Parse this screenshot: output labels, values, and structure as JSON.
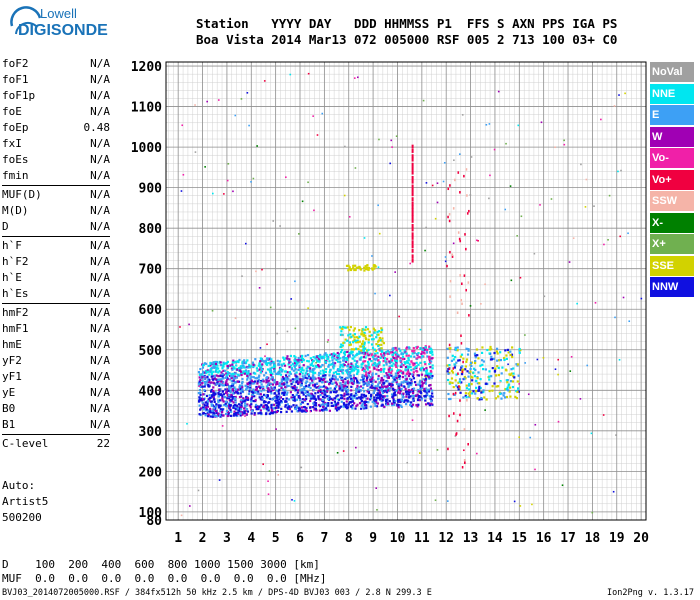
{
  "logo": {
    "line1": "Lowell",
    "line2": "DIGISONDE"
  },
  "header": {
    "line1": "Station   YYYY DAY   DDD HHMMSS P1  FFS S AXN PPS IGA PS",
    "line2": "Boa Vista 2014 Mar13 072 005000 RSF 005 2 713 100 03+ C0"
  },
  "params": [
    [
      {
        "k": "foF2",
        "v": "N/A"
      },
      {
        "k": "foF1",
        "v": "N/A"
      },
      {
        "k": "foF1p",
        "v": "N/A"
      },
      {
        "k": "foE",
        "v": "N/A"
      },
      {
        "k": "foEp",
        "v": "0.48"
      },
      {
        "k": "fxI",
        "v": "N/A"
      },
      {
        "k": "foEs",
        "v": "N/A"
      },
      {
        "k": "fmin",
        "v": "N/A"
      }
    ],
    [
      {
        "k": "MUF(D)",
        "v": "N/A"
      },
      {
        "k": "M(D)",
        "v": "N/A"
      },
      {
        "k": "D",
        "v": "N/A"
      }
    ],
    [
      {
        "k": "h`F",
        "v": "N/A"
      },
      {
        "k": "h`F2",
        "v": "N/A"
      },
      {
        "k": "h`E",
        "v": "N/A"
      },
      {
        "k": "h`Es",
        "v": "N/A"
      }
    ],
    [
      {
        "k": "hmF2",
        "v": "N/A"
      },
      {
        "k": "hmF1",
        "v": "N/A"
      },
      {
        "k": "hmE",
        "v": "N/A"
      },
      {
        "k": "yF2",
        "v": "N/A"
      },
      {
        "k": "yF1",
        "v": "N/A"
      },
      {
        "k": "yE",
        "v": "N/A"
      },
      {
        "k": "B0",
        "v": "N/A"
      },
      {
        "k": "B1",
        "v": "N/A"
      }
    ],
    [
      {
        "k": "C-level",
        "v": "22"
      }
    ]
  ],
  "auto": {
    "line1": "Auto:",
    "line2": "Artist5",
    "line3": "500200"
  },
  "legend": [
    {
      "label": "NoVal",
      "color": "#a0a0a0"
    },
    {
      "label": "NNE",
      "color": "#00e6f0"
    },
    {
      "label": "E",
      "color": "#3da0f5"
    },
    {
      "label": "W",
      "color": "#a000b4"
    },
    {
      "label": "Vo-",
      "color": "#f020a8"
    },
    {
      "label": "Vo+",
      "color": "#f00040"
    },
    {
      "label": "SSW",
      "color": "#f5b4a8"
    },
    {
      "label": "X-",
      "color": "#008000"
    },
    {
      "label": "X+",
      "color": "#70b050"
    },
    {
      "label": "SSE",
      "color": "#d2d200"
    },
    {
      "label": "NNW",
      "color": "#1010e0"
    }
  ],
  "chart_data": {
    "type": "scatter",
    "xlabel": "",
    "ylabel": "",
    "xlim": [
      0.5,
      20.2
    ],
    "ylim": [
      80,
      1210
    ],
    "x_ticks": [
      "1",
      "2",
      "3",
      "4",
      "5",
      "6",
      "7",
      "8",
      "9",
      "10",
      "11",
      "12",
      "13",
      "14",
      "15",
      "16",
      "17",
      "18",
      "19",
      "20"
    ],
    "y_ticks": [
      "80",
      "100",
      "200",
      "300",
      "400",
      "500",
      "600",
      "700",
      "800",
      "900",
      "1000",
      "1100",
      "1200"
    ],
    "grid": true,
    "clusters": [
      {
        "name": "F-layer trace main band",
        "x_range": [
          1.8,
          11.4
        ],
        "y_range": [
          340,
          520
        ],
        "dominant": [
          "E",
          "NNW",
          "W",
          "NNE"
        ]
      },
      {
        "name": "Multi-hop echoes",
        "x_range": [
          7.8,
          9.2
        ],
        "y_range": [
          695,
          720
        ],
        "dominant": [
          "SSE"
        ]
      },
      {
        "name": "Vertical spikes",
        "x": 10.6,
        "y_range": [
          720,
          1020
        ],
        "dominant": [
          "Vo+"
        ]
      },
      {
        "name": "High-frequency scatter",
        "x_range": [
          12.0,
          15.0
        ],
        "y_range": [
          380,
          520
        ],
        "dominant": [
          "SSE",
          "E",
          "NNW"
        ]
      }
    ]
  },
  "footer": {
    "line1": "D    100  200  400  600  800 1000 1500 3000 [km]",
    "line2": "MUF  0.0  0.0  0.0  0.0  0.0  0.0  0.0  0.0 [MHz]"
  },
  "status": "BVJ03_2014072005000.RSF / 384fx512h 50 kHz 2.5 km / DPS-4D BVJ03 003 / 2.8 N 299.3 E",
  "version": "Ion2Png v. 1.3.17"
}
